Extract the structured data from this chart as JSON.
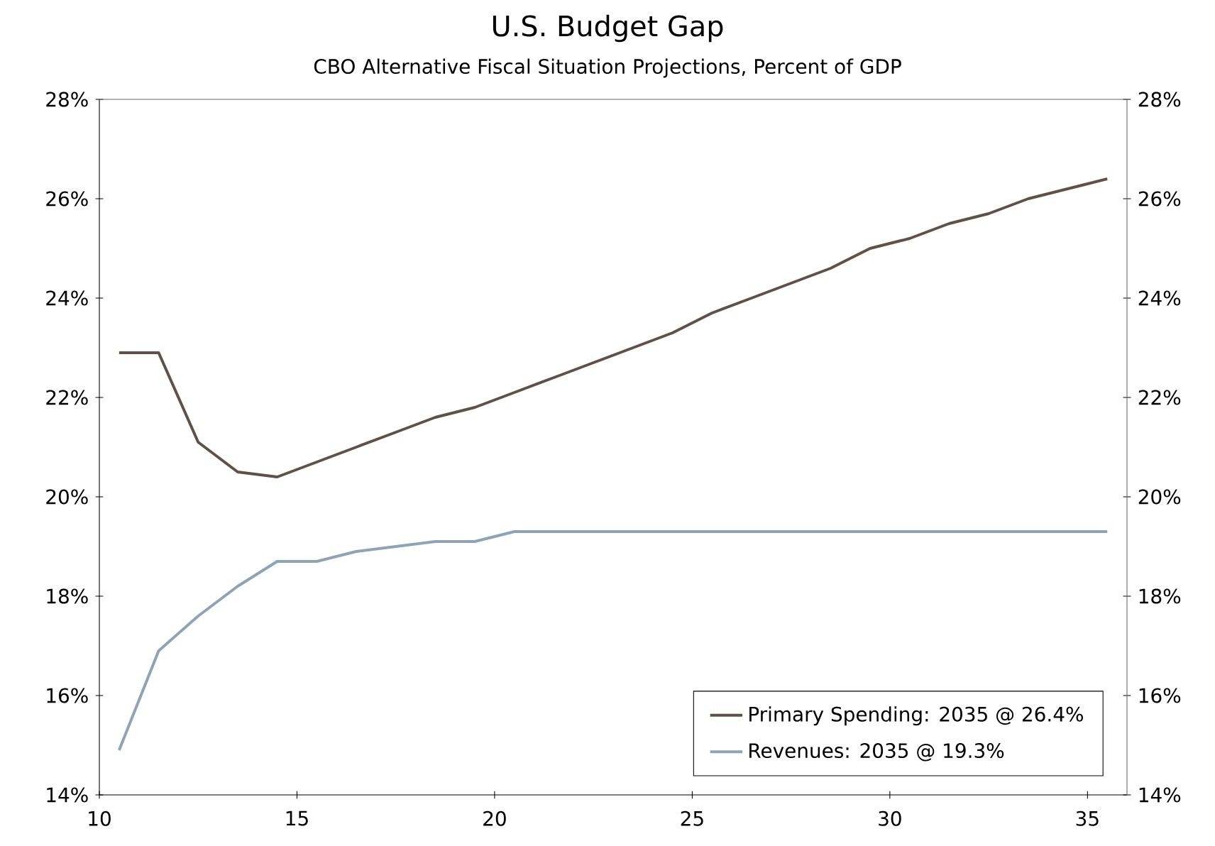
{
  "chart_data": {
    "type": "line",
    "title": "U.S. Budget Gap",
    "subtitle": "CBO Alternative Fiscal Situation Projections, Percent of GDP",
    "x": [
      10.5,
      11.5,
      12.5,
      13.5,
      14.5,
      15.5,
      16.5,
      17.5,
      18.5,
      19.5,
      20.5,
      21.5,
      22.5,
      23.5,
      24.5,
      25.5,
      26.5,
      27.5,
      28.5,
      29.5,
      30.5,
      31.5,
      32.5,
      33.5,
      34.5,
      35.5
    ],
    "series": [
      {
        "name": "Primary Spending: 2035 @ 26.4%",
        "color": "#5f5147",
        "values": [
          22.9,
          22.9,
          21.1,
          20.5,
          20.4,
          20.7,
          21.0,
          21.3,
          21.6,
          21.8,
          22.1,
          22.4,
          22.7,
          23.0,
          23.3,
          23.7,
          24.0,
          24.3,
          24.6,
          25.0,
          25.2,
          25.5,
          25.7,
          26.0,
          26.2,
          26.4
        ]
      },
      {
        "name": "Revenues: 2035 @ 19.3%",
        "color": "#8ea3b3",
        "values": [
          14.9,
          16.9,
          17.6,
          18.2,
          18.7,
          18.7,
          18.9,
          19.0,
          19.1,
          19.1,
          19.3,
          19.3,
          19.3,
          19.3,
          19.3,
          19.3,
          19.3,
          19.3,
          19.3,
          19.3,
          19.3,
          19.3,
          19.3,
          19.3,
          19.3,
          19.3
        ]
      }
    ],
    "xlim": [
      10,
      36
    ],
    "xticks": [
      10,
      15,
      20,
      25,
      30,
      35
    ],
    "ylim": [
      14,
      28
    ],
    "yticks": [
      {
        "value": 14,
        "label": "14%"
      },
      {
        "value": 16,
        "label": "16%"
      },
      {
        "value": 18,
        "label": "18%"
      },
      {
        "value": 20,
        "label": "20%"
      },
      {
        "value": 22,
        "label": "22%"
      },
      {
        "value": 24,
        "label": "24%"
      },
      {
        "value": 26,
        "label": "26%"
      },
      {
        "value": 28,
        "label": "28%"
      }
    ],
    "y2lim": [
      14,
      28
    ],
    "y2ticks": [
      {
        "value": 14,
        "label": "14%"
      },
      {
        "value": 16,
        "label": "16%"
      },
      {
        "value": 18,
        "label": "18%"
      },
      {
        "value": 20,
        "label": "20%"
      },
      {
        "value": 22,
        "label": "22%"
      },
      {
        "value": 24,
        "label": "24%"
      },
      {
        "value": 26,
        "label": "26%"
      },
      {
        "value": 28,
        "label": "28%"
      }
    ],
    "grid": false,
    "legend": "bottom right",
    "marker": "none",
    "line_style": "solid"
  }
}
